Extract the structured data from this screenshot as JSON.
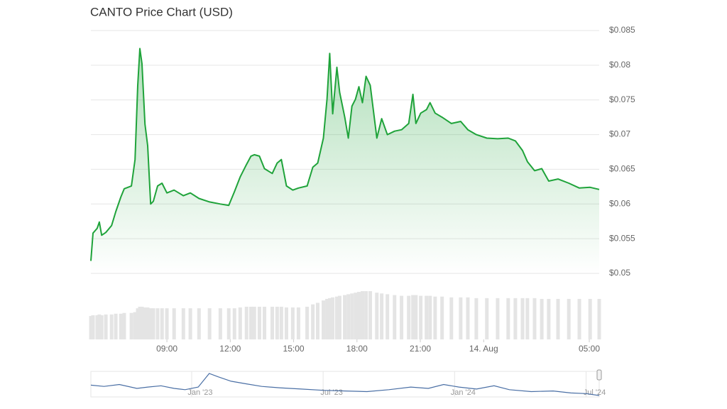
{
  "chart_data": [
    {
      "type": "area",
      "title": "CANTO Price Chart (USD)",
      "color": "#1fa33a",
      "x": [
        5.4,
        5.5,
        5.7,
        5.8,
        5.91,
        6.11,
        6.38,
        6.58,
        6.82,
        6.98,
        7.32,
        7.49,
        7.62,
        7.72,
        7.82,
        7.96,
        8.09,
        8.23,
        8.36,
        8.56,
        8.77,
        9.0,
        9.34,
        9.78,
        10.11,
        10.52,
        11.02,
        11.53,
        11.93,
        12.2,
        12.47,
        12.77,
        12.98,
        13.14,
        13.38,
        13.62,
        13.99,
        14.22,
        14.42,
        14.66,
        14.96,
        15.23,
        15.64,
        15.91,
        16.14,
        16.41,
        16.58,
        16.71,
        16.85,
        17.05,
        17.18,
        17.42,
        17.59,
        17.76,
        17.93,
        18.09,
        18.26,
        18.43,
        18.63,
        18.94,
        19.17,
        19.44,
        19.78,
        20.11,
        20.45,
        20.65,
        20.79,
        21.02,
        21.29,
        21.46,
        21.7,
        22.03,
        22.47,
        22.91,
        23.25,
        23.65,
        24.15,
        24.66,
        25.16,
        25.5,
        25.84,
        26.07,
        26.41,
        26.75,
        27.08,
        27.52,
        28.03,
        28.53,
        29.04,
        29.47
      ],
      "values": [
        0.0518,
        0.0558,
        0.0565,
        0.0574,
        0.0555,
        0.0559,
        0.0569,
        0.0589,
        0.061,
        0.0622,
        0.0626,
        0.0664,
        0.0771,
        0.0824,
        0.0802,
        0.0715,
        0.0684,
        0.06,
        0.0604,
        0.0626,
        0.063,
        0.0616,
        0.062,
        0.0612,
        0.0616,
        0.0608,
        0.0603,
        0.06,
        0.0598,
        0.0618,
        0.0639,
        0.0657,
        0.0669,
        0.0671,
        0.0669,
        0.0651,
        0.0644,
        0.0659,
        0.0664,
        0.0626,
        0.062,
        0.0623,
        0.0626,
        0.0653,
        0.0659,
        0.0695,
        0.0751,
        0.0817,
        0.073,
        0.0797,
        0.0761,
        0.0725,
        0.0695,
        0.0741,
        0.0751,
        0.0769,
        0.0746,
        0.0784,
        0.0771,
        0.0695,
        0.0723,
        0.07,
        0.0705,
        0.0707,
        0.0716,
        0.0758,
        0.0716,
        0.0731,
        0.0736,
        0.0746,
        0.0731,
        0.0725,
        0.0716,
        0.0719,
        0.0707,
        0.07,
        0.0695,
        0.0694,
        0.0695,
        0.0691,
        0.0677,
        0.0661,
        0.0648,
        0.0651,
        0.0633,
        0.0636,
        0.063,
        0.0623,
        0.0624,
        0.0621
      ],
      "volume": [
        30,
        31,
        31,
        32,
        31,
        32,
        32,
        33,
        33,
        34,
        34,
        35,
        40,
        42,
        42,
        41,
        41,
        40,
        40,
        40,
        40,
        40,
        40,
        40,
        40,
        40,
        40,
        40,
        40,
        40,
        41,
        42,
        42,
        42,
        42,
        42,
        42,
        42,
        42,
        41,
        41,
        41,
        42,
        45,
        47,
        50,
        52,
        53,
        54,
        55,
        56,
        57,
        58,
        59,
        60,
        61,
        62,
        62,
        62,
        60,
        59,
        58,
        57,
        56,
        56,
        57,
        57,
        56,
        56,
        56,
        55,
        55,
        54,
        54,
        54,
        53,
        53,
        53,
        53,
        53,
        53,
        53,
        53,
        52,
        52,
        52,
        52,
        52,
        52,
        52
      ],
      "xlim": [
        5.4,
        29.47
      ],
      "xticks": [
        {
          "value": 9,
          "label": "09:00"
        },
        {
          "value": 12,
          "label": "12:00"
        },
        {
          "value": 15,
          "label": "15:00"
        },
        {
          "value": 18,
          "label": "18:00"
        },
        {
          "value": 21,
          "label": "21:00"
        },
        {
          "value": 24,
          "label": "14. Aug"
        },
        {
          "value": 29,
          "label": "05:00"
        }
      ],
      "ylim": [
        0.05,
        0.085
      ],
      "yticks": [
        {
          "value": 0.05,
          "label": "$0.05"
        },
        {
          "value": 0.055,
          "label": "$0.055"
        },
        {
          "value": 0.06,
          "label": "$0.06"
        },
        {
          "value": 0.065,
          "label": "$0.065"
        },
        {
          "value": 0.07,
          "label": "$0.07"
        },
        {
          "value": 0.075,
          "label": "$0.075"
        },
        {
          "value": 0.08,
          "label": "$0.08"
        },
        {
          "value": 0.085,
          "label": "$0.085"
        }
      ],
      "grid": true
    },
    {
      "type": "line",
      "color": "#4a6fa5",
      "x": [
        -4.6,
        -4,
        -3.3,
        -2.5,
        -2,
        -1.4,
        -0.8,
        -0.3,
        0.3,
        0.8,
        1.2,
        1.8,
        2.5,
        3.2,
        4,
        5,
        6,
        7,
        8,
        9,
        10,
        10.8,
        11.5,
        12.2,
        13,
        13.8,
        14.5,
        15.5,
        16.5,
        17.3,
        18,
        18.6
      ],
      "values": [
        0.22,
        0.2,
        0.23,
        0.17,
        0.19,
        0.21,
        0.17,
        0.15,
        0.19,
        0.4,
        0.35,
        0.28,
        0.24,
        0.2,
        0.18,
        0.16,
        0.14,
        0.13,
        0.12,
        0.15,
        0.19,
        0.17,
        0.23,
        0.19,
        0.16,
        0.21,
        0.15,
        0.12,
        0.13,
        0.1,
        0.09,
        0.06
      ],
      "xlim": [
        -4.6,
        18.6
      ],
      "xticks": [
        {
          "value": 0,
          "label": "Jan '23"
        },
        {
          "value": 6,
          "label": "Jul '23"
        },
        {
          "value": 12,
          "label": "Jan '24"
        },
        {
          "value": 18,
          "label": "Jul '24"
        }
      ]
    }
  ]
}
